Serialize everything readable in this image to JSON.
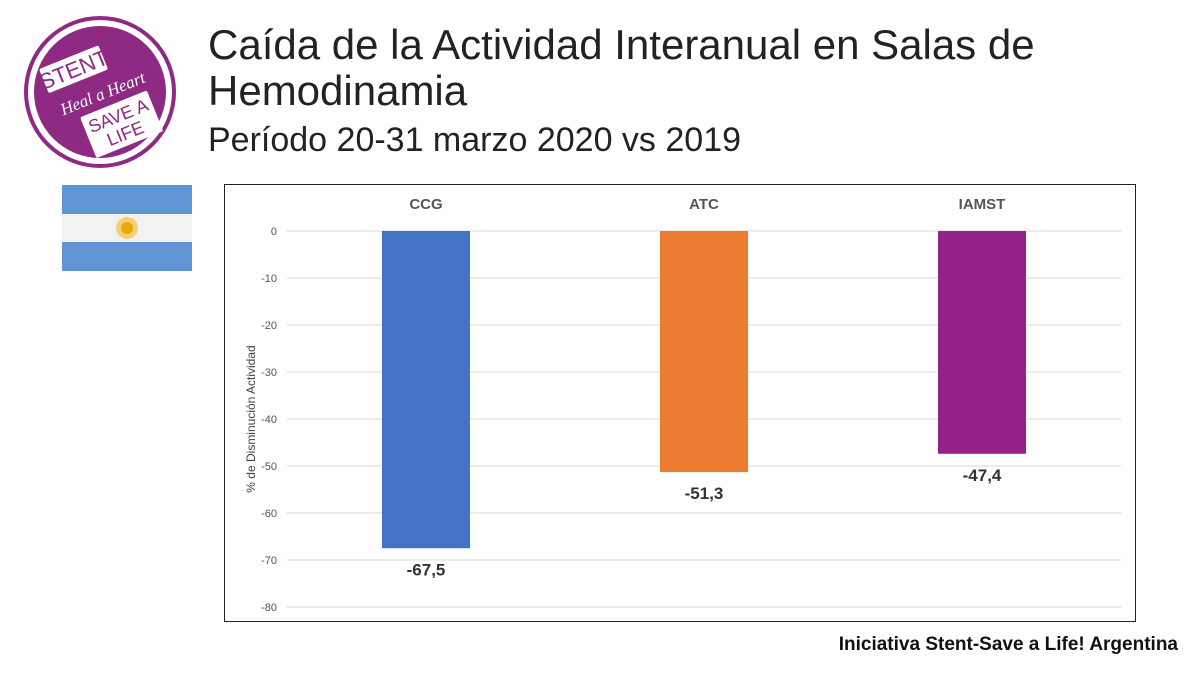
{
  "header": {
    "title": "Caída de la Actividad Interanual en Salas de Hemodinamia",
    "subtitle": "Período 20-31 marzo 2020 vs 2019"
  },
  "logo": {
    "line1": "STENT",
    "line2": "Heal a Heart",
    "line3": "SAVE A",
    "line4": "LIFE"
  },
  "footer": {
    "text": "Iniciativa Stent-Save a Life! Argentina"
  },
  "colors": {
    "brand_purple": "#8e2a83",
    "flag_blue": "#75aadb",
    "flag_sun": "#f6b40e"
  },
  "chart_data": {
    "type": "bar",
    "categories": [
      "CCG",
      "ATC",
      "IAMST"
    ],
    "values": [
      -67.5,
      -51.3,
      -47.4
    ],
    "value_labels": [
      "-67,5",
      "-51,3",
      "-47,4"
    ],
    "colors": [
      "#4472c4",
      "#ed7d31",
      "#952289"
    ],
    "title": "",
    "xlabel": "",
    "ylabel": "% de Disminución Actividad",
    "ylim": [
      -80,
      0
    ],
    "yticks": [
      0,
      -10,
      -20,
      -30,
      -40,
      -50,
      -60,
      -70,
      -80
    ],
    "ytick_labels": [
      "0",
      "-10",
      "-20",
      "-30",
      "-40",
      "-50",
      "-60",
      "-70",
      "-80"
    ],
    "grid": true,
    "category_axis_position": "top"
  }
}
